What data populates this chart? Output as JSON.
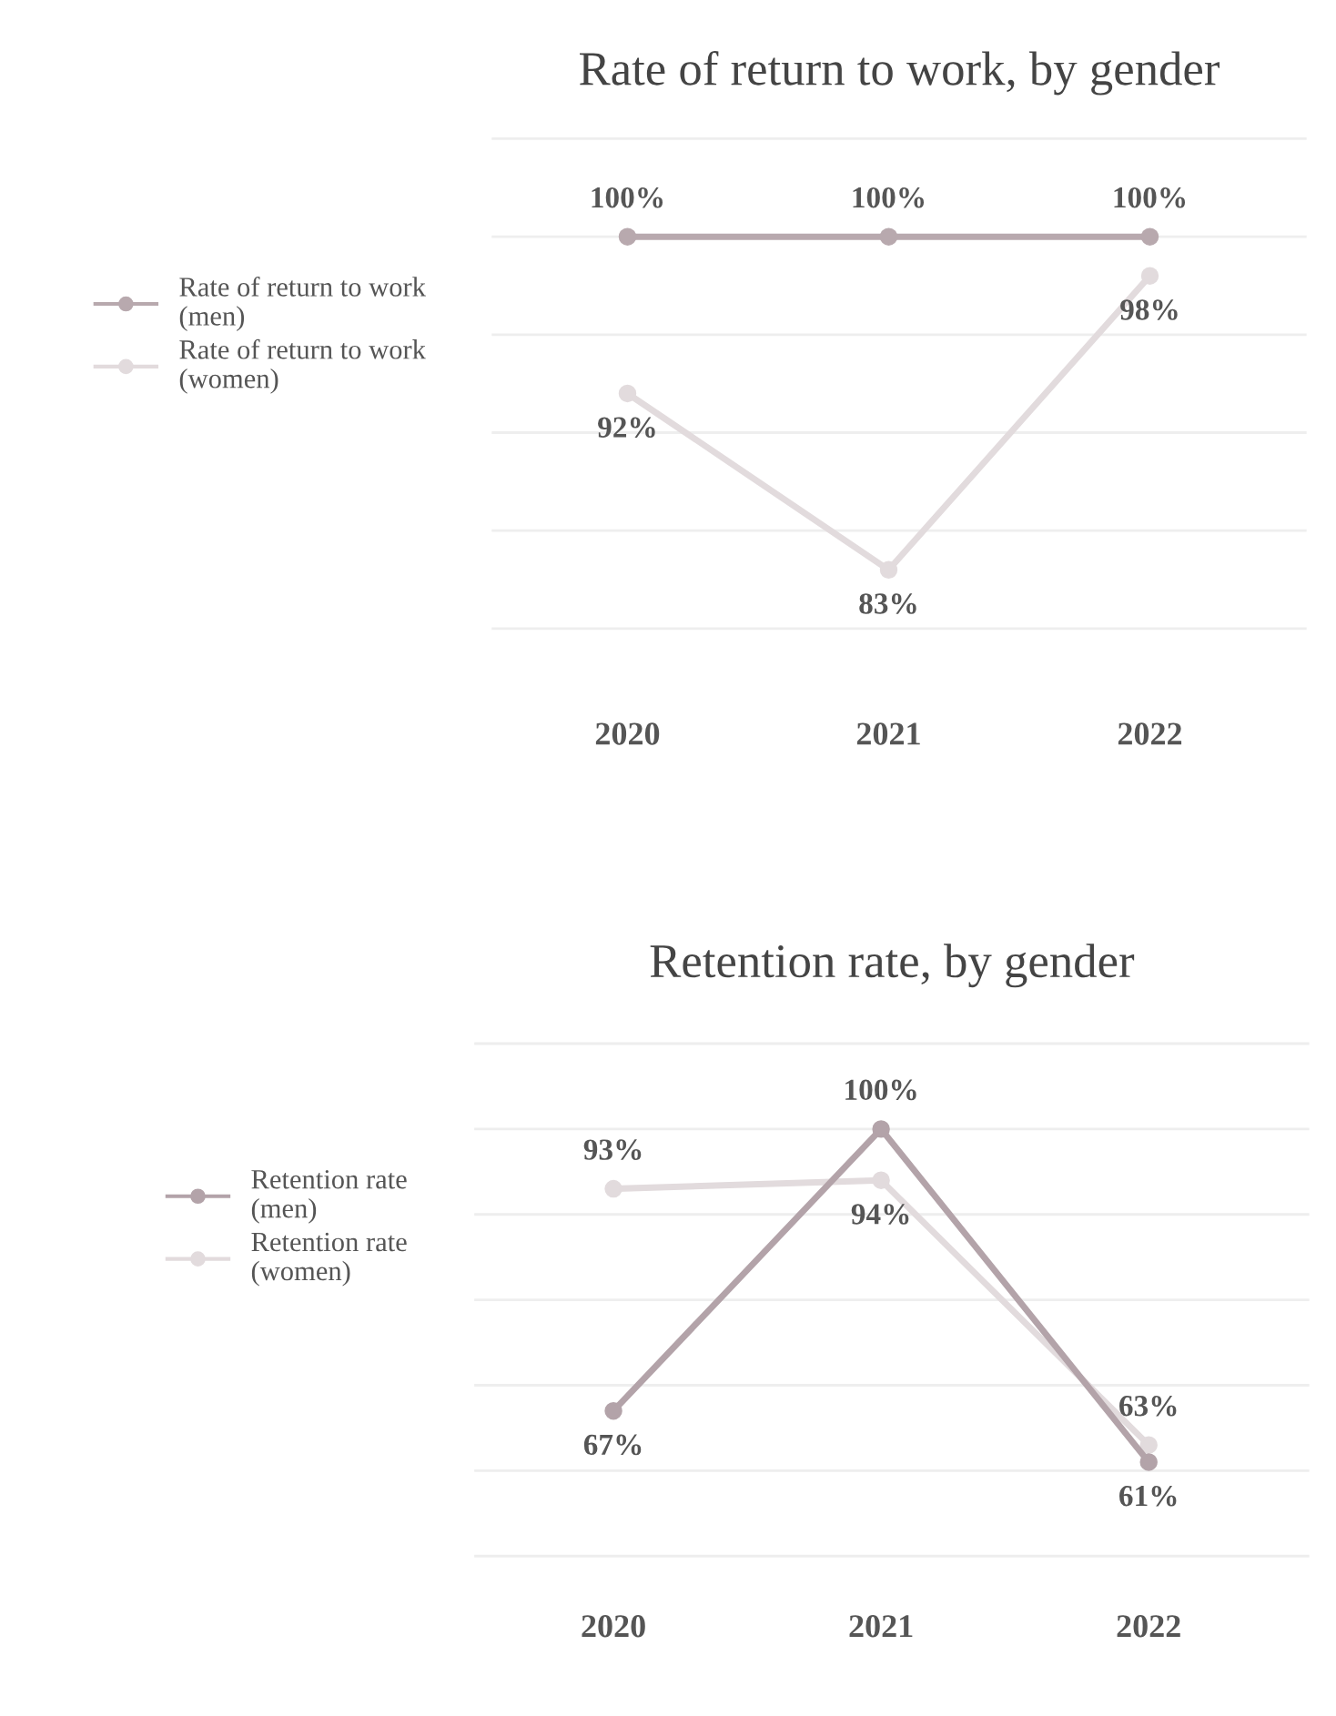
{
  "chart_data": [
    {
      "type": "line",
      "title": "Rate of return to work, by gender",
      "categories": [
        "2020",
        "2021",
        "2022"
      ],
      "series": [
        {
          "name": "Rate of return to work\n(men)",
          "color": "#b8a9ae",
          "values": [
            100,
            100,
            100
          ],
          "value_labels": [
            "100%",
            "100%",
            "100%"
          ]
        },
        {
          "name": "Rate of return to work\n(women)",
          "color": "#e2dbdd",
          "values": [
            92,
            83,
            98
          ],
          "value_labels": [
            "92%",
            "83%",
            "98%"
          ]
        }
      ],
      "grid": "y",
      "legend": "left",
      "marker": "circle",
      "tick_labels": "x"
    },
    {
      "type": "line",
      "title": "Retention rate, by gender",
      "categories": [
        "2020",
        "2021",
        "2022"
      ],
      "series": [
        {
          "name": "Retention rate\n(men)",
          "color": "#b3a3a9",
          "values": [
            67,
            100,
            61
          ],
          "value_labels": [
            "67%",
            "100%",
            "61%"
          ]
        },
        {
          "name": "Retention rate\n(women)",
          "color": "#e2dbdd",
          "values": [
            93,
            94,
            63
          ],
          "value_labels": [
            "93%",
            "94%",
            "63%"
          ]
        }
      ],
      "grid": "y",
      "legend": "left",
      "marker": "circle",
      "tick_labels": "x"
    }
  ]
}
